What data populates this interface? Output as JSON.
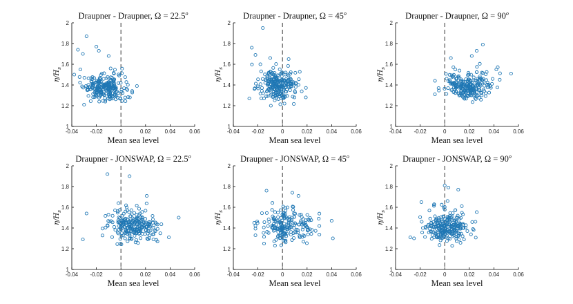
{
  "figure": {
    "panel_order": "3 columns x 2 rows",
    "point_color": "#1f77b4"
  },
  "chart_data": [
    {
      "type": "scatter",
      "title": "Draupner - Draupner, Ω = 22.5",
      "title_sup": "o",
      "xlabel": "Mean sea level",
      "ylabel": "η/H",
      "ylabel_sub": "s",
      "xlim": [
        -0.04,
        0.06
      ],
      "ylim": [
        1,
        2
      ],
      "xticks": [
        "-0.04",
        "-0.02",
        "0",
        "0.02",
        "0.04",
        "0.06"
      ],
      "yticks": [
        "1",
        "1.2",
        "1.4",
        "1.6",
        "1.8",
        "2"
      ],
      "reference_line_x": 0,
      "cluster": {
        "x_center": -0.013,
        "x_spread": 0.0085,
        "y_center": 1.34,
        "y_spread": 0.085,
        "x_min": -0.035,
        "x_max": 0.016,
        "count": 240
      },
      "extra_points": [
        [
          -0.028,
          1.87
        ],
        [
          -0.035,
          1.74
        ],
        [
          -0.031,
          1.7
        ],
        [
          -0.02,
          1.77
        ],
        [
          -0.038,
          1.5
        ],
        [
          -0.033,
          1.55
        ],
        [
          0.013,
          1.39
        ],
        [
          -0.03,
          1.21
        ],
        [
          -0.018,
          1.73
        ],
        [
          -0.01,
          1.68
        ]
      ]
    },
    {
      "type": "scatter",
      "title": "Draupner - Draupner, Ω = 45",
      "title_sup": "o",
      "xlabel": "Mean sea level",
      "ylabel": "η/H",
      "ylabel_sub": "s",
      "xlim": [
        -0.04,
        0.06
      ],
      "ylim": [
        1,
        2
      ],
      "xticks": [
        "-0.04",
        "-0.02",
        "0",
        "0.02",
        "0.04",
        "0.06"
      ],
      "yticks": [
        "1",
        "1.2",
        "1.4",
        "1.6",
        "1.8",
        "2"
      ],
      "reference_line_x": 0,
      "cluster": {
        "x_center": -0.004,
        "x_spread": 0.0075,
        "y_center": 1.36,
        "y_spread": 0.09,
        "x_min": -0.027,
        "x_max": 0.02,
        "count": 240
      },
      "extra_points": [
        [
          -0.016,
          1.95
        ],
        [
          -0.025,
          1.76
        ],
        [
          -0.022,
          1.69
        ],
        [
          -0.01,
          1.66
        ],
        [
          0.019,
          1.28
        ],
        [
          -0.027,
          1.27
        ],
        [
          0.005,
          1.65
        ],
        [
          -0.018,
          1.6
        ]
      ]
    },
    {
      "type": "scatter",
      "title": "Draupner - Draupner, Ω = 90",
      "title_sup": "o",
      "xlabel": "Mean sea level",
      "ylabel": "η/H",
      "ylabel_sub": "s",
      "xlim": [
        -0.04,
        0.06
      ],
      "ylim": [
        1,
        2
      ],
      "xticks": [
        "-0.04",
        "-0.02",
        "0",
        "0.02",
        "0.04",
        "0.06"
      ],
      "yticks": [
        "1",
        "1.2",
        "1.4",
        "1.6",
        "1.8",
        "2"
      ],
      "reference_line_x": 0,
      "cluster": {
        "x_center": 0.019,
        "x_spread": 0.0095,
        "y_center": 1.36,
        "y_spread": 0.085,
        "x_min": -0.008,
        "x_max": 0.045,
        "count": 240
      },
      "extra_points": [
        [
          0.031,
          1.79
        ],
        [
          0.026,
          1.73
        ],
        [
          0.054,
          1.51
        ],
        [
          0.005,
          1.66
        ],
        [
          -0.008,
          1.31
        ],
        [
          0.022,
          1.68
        ],
        [
          0.042,
          1.55
        ],
        [
          -0.005,
          1.37
        ]
      ]
    },
    {
      "type": "scatter",
      "title": "Draupner - JONSWAP, Ω = 22.5",
      "title_sup": "o",
      "xlabel": "Mean sea level",
      "ylabel": "η/H",
      "ylabel_sub": "s",
      "xlim": [
        -0.04,
        0.06
      ],
      "ylim": [
        1,
        2
      ],
      "xticks": [
        "-0.04",
        "-0.02",
        "0",
        "0.02",
        "0.04",
        "0.06"
      ],
      "yticks": [
        "1",
        "1.2",
        "1.4",
        "1.6",
        "1.8",
        "2"
      ],
      "reference_line_x": 0,
      "cluster": {
        "x_center": 0.009,
        "x_spread": 0.01,
        "y_center": 1.38,
        "y_spread": 0.1,
        "x_min": -0.015,
        "x_max": 0.04,
        "count": 240
      },
      "extra_points": [
        [
          -0.011,
          1.92
        ],
        [
          0.007,
          1.9
        ],
        [
          -0.028,
          1.54
        ],
        [
          -0.031,
          1.29
        ],
        [
          0.047,
          1.5
        ],
        [
          0.039,
          1.31
        ],
        [
          0.021,
          1.71
        ],
        [
          -0.002,
          1.64
        ]
      ]
    },
    {
      "type": "scatter",
      "title": "Draupner - JONSWAP, Ω = 45",
      "title_sup": "o",
      "xlabel": "Mean sea level",
      "ylabel": "η/H",
      "ylabel_sub": "s",
      "xlim": [
        -0.04,
        0.06
      ],
      "ylim": [
        1,
        2
      ],
      "xticks": [
        "-0.04",
        "-0.02",
        "0",
        "0.02",
        "0.04",
        "0.06"
      ],
      "yticks": [
        "1",
        "1.2",
        "1.4",
        "1.6",
        "1.8",
        "2"
      ],
      "reference_line_x": 0,
      "cluster": {
        "x_center": 0.004,
        "x_spread": 0.011,
        "y_center": 1.38,
        "y_spread": 0.1,
        "x_min": -0.022,
        "x_max": 0.03,
        "count": 200
      },
      "extra_points": [
        [
          -0.013,
          1.76
        ],
        [
          0.008,
          1.74
        ],
        [
          0.013,
          1.71
        ],
        [
          0.04,
          1.47
        ],
        [
          0.041,
          1.3
        ],
        [
          -0.023,
          1.45
        ],
        [
          -0.022,
          1.33
        ],
        [
          -0.015,
          1.25
        ]
      ]
    },
    {
      "type": "scatter",
      "title": "Draupner - JONSWAP, Ω = 90",
      "title_sup": "o",
      "xlabel": "Mean sea level",
      "ylabel": "η/H",
      "ylabel_sub": "s",
      "xlim": [
        -0.04,
        0.06
      ],
      "ylim": [
        1,
        2
      ],
      "xticks": [
        "-0.04",
        "-0.02",
        "0",
        "0.02",
        "0.04",
        "0.06"
      ],
      "yticks": [
        "1",
        "1.2",
        "1.4",
        "1.6",
        "1.8",
        "2"
      ],
      "reference_line_x": 0,
      "cluster": {
        "x_center": 0.001,
        "x_spread": 0.0085,
        "y_center": 1.37,
        "y_spread": 0.09,
        "x_min": -0.02,
        "x_max": 0.027,
        "count": 240
      },
      "extra_points": [
        [
          0.0,
          1.81
        ],
        [
          0.003,
          1.79
        ],
        [
          -0.019,
          1.65
        ],
        [
          -0.028,
          1.31
        ],
        [
          -0.025,
          1.3
        ],
        [
          0.023,
          1.39
        ],
        [
          0.025,
          1.46
        ],
        [
          0.011,
          1.77
        ]
      ]
    }
  ]
}
